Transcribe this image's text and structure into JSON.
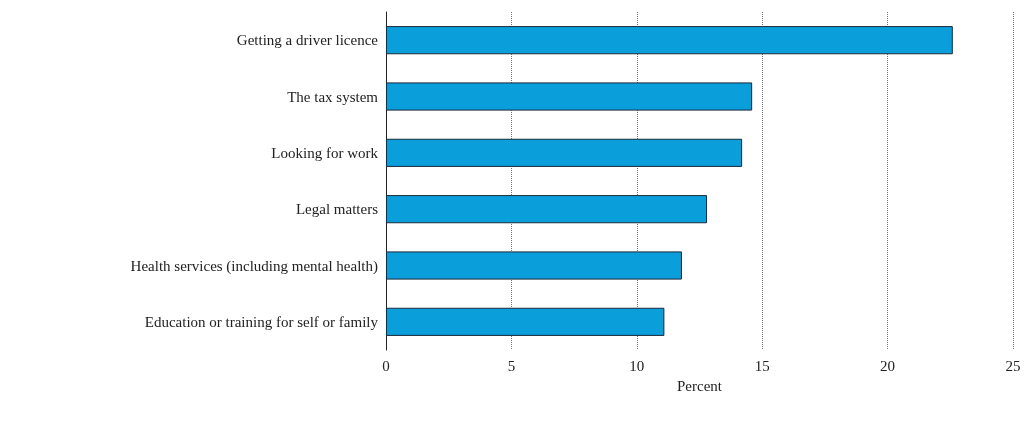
{
  "chart_data": {
    "type": "bar",
    "orientation": "horizontal",
    "xlabel": "Percent",
    "categories": [
      "Getting a driver licence",
      "The tax system",
      "Looking for work",
      "Legal matters",
      "Health services (including mental health)",
      "Education or training for self or family"
    ],
    "values": [
      22.6,
      14.6,
      14.2,
      12.8,
      11.8,
      11.1
    ],
    "color": "#0a9edb",
    "xlim": [
      0,
      25
    ],
    "xticks": [
      0,
      5,
      10,
      15,
      20,
      25
    ],
    "grid": "x"
  }
}
